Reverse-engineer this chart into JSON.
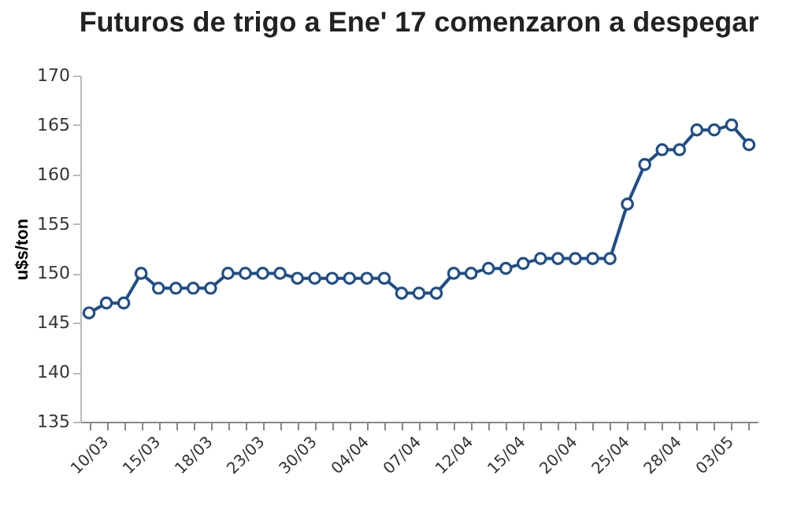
{
  "chart_data": {
    "type": "line",
    "title": "Futuros de trigo a Ene' 17 comenzaron a despegar",
    "ylabel": "u$s/ton",
    "categories": [
      "10/03",
      null,
      null,
      "15/03",
      null,
      null,
      "18/03",
      null,
      null,
      "23/03",
      null,
      null,
      "30/03",
      null,
      null,
      "04/04",
      null,
      null,
      "07/04",
      null,
      null,
      "12/04",
      null,
      null,
      "15/04",
      null,
      null,
      "20/04",
      null,
      null,
      "25/04",
      null,
      null,
      "28/04",
      null,
      null,
      "03/05",
      null,
      null
    ],
    "series": [
      {
        "color": "#1f4e89",
        "values": [
          146,
          147,
          147,
          150,
          148.5,
          148.5,
          148.5,
          148.5,
          150,
          150,
          150,
          150,
          149.5,
          149.5,
          149.5,
          149.5,
          149.5,
          149.5,
          148,
          148,
          148,
          150,
          150,
          150.5,
          150.5,
          151,
          151.5,
          151.5,
          151.5,
          151.5,
          151.5,
          157,
          161,
          162.5,
          162.5,
          164.5,
          164.5,
          165,
          163
        ]
      }
    ],
    "ylim": [
      135,
      170
    ],
    "yticks": [
      135,
      140,
      145,
      150,
      155,
      160,
      165,
      170
    ],
    "marker": "circle",
    "line_style": "solid",
    "grid": false,
    "legend": false
  }
}
